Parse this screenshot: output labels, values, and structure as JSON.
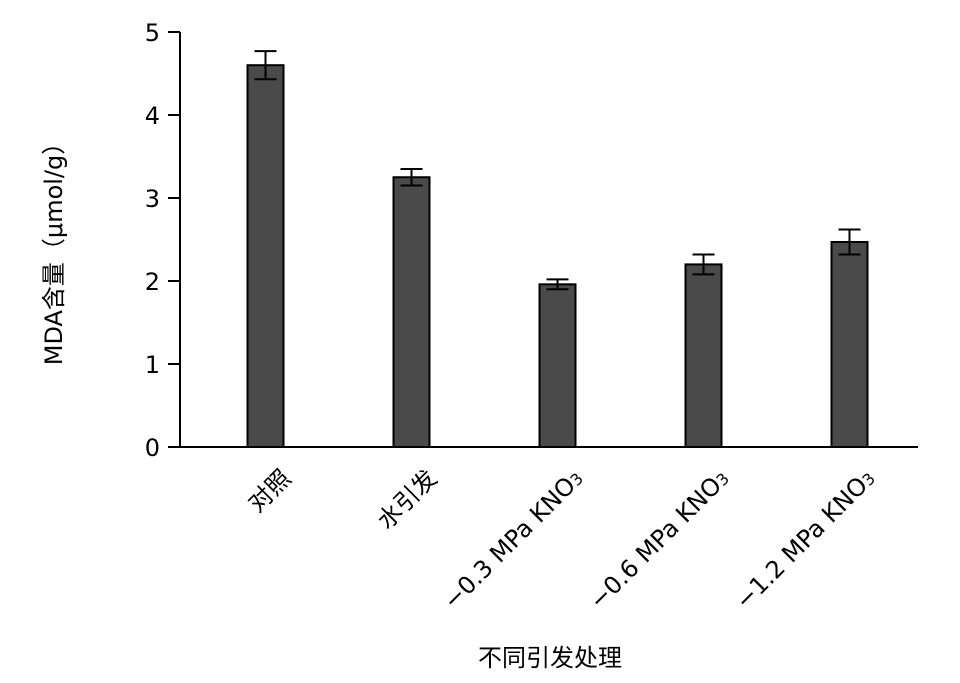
{
  "chart_data": {
    "type": "bar",
    "title": "",
    "xlabel": "不同引发处理",
    "ylabel": "MDA含量（μmol/g）",
    "ylim": [
      0,
      5
    ],
    "yticks": [
      "0",
      "1",
      "2",
      "3",
      "4",
      "5"
    ],
    "ytick_values": [
      0,
      1,
      2,
      3,
      4,
      5
    ],
    "grid": false,
    "bar_color": "#4a4a4a",
    "categories": [
      {
        "main": "对照",
        "sub": ""
      },
      {
        "main": "水引发",
        "sub": ""
      },
      {
        "main": "−0.3 MPa KNO",
        "sub": "3"
      },
      {
        "main": "−0.6 MPa KNO",
        "sub": "3"
      },
      {
        "main": "−1.2 MPa KNO",
        "sub": "3"
      }
    ],
    "values": [
      4.6,
      3.25,
      1.96,
      2.2,
      2.47
    ],
    "errors": [
      0.17,
      0.1,
      0.06,
      0.12,
      0.15
    ]
  }
}
